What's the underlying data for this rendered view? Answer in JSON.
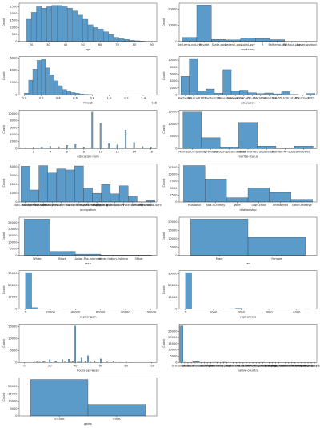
{
  "chart_data": [
    {
      "type": "histogram",
      "xlabel": "age",
      "ylabel": "Count",
      "color": "#5b9bc9",
      "bins": [
        17,
        20,
        23,
        26,
        29,
        32,
        35,
        38,
        41,
        44,
        47,
        50,
        53,
        56,
        59,
        62,
        65,
        68,
        71,
        74,
        77,
        80,
        83,
        86,
        89
      ],
      "values": [
        1600,
        2100,
        2500,
        2400,
        2500,
        2600,
        2600,
        2500,
        2400,
        2200,
        1900,
        1600,
        1200,
        1000,
        900,
        700,
        500,
        300,
        200,
        150,
        80,
        50,
        20,
        10
      ],
      "xlim": [
        13,
        93
      ],
      "xticks": [
        20,
        30,
        40,
        50,
        60,
        70,
        80,
        90
      ],
      "ylim": [
        0,
        2750
      ],
      "yticks": [
        0,
        500,
        1000,
        1500,
        2000,
        2500
      ]
    },
    {
      "type": "bar",
      "xlabel": "workclass",
      "ylabel": "Count",
      "color": "#5b9bc9",
      "categories": [
        "Self-emp-not-inc",
        "Private",
        "State-gov",
        "Federal-gov",
        "Local-gov",
        "?",
        "Self-emp-inc",
        "Without-pay",
        "Never-worked"
      ],
      "values": [
        2541,
        22696,
        1298,
        960,
        2093,
        1836,
        1116,
        14,
        7
      ],
      "ylim": [
        0,
        23830
      ],
      "yticks": [
        0,
        10000,
        20000
      ]
    },
    {
      "type": "histogram",
      "xlabel": "fnlwgt",
      "ylabel": "Count",
      "x_offset": "1e6",
      "color": "#5b9bc9",
      "bins": [
        0,
        50000,
        100000,
        150000,
        200000,
        250000,
        300000,
        350000,
        400000,
        450000,
        500000,
        550000,
        600000,
        650000,
        700000,
        750000,
        800000,
        850000,
        900000,
        950000,
        1000000,
        1050000,
        1100000,
        1150000,
        1200000,
        1250000,
        1300000,
        1350000,
        1400000,
        1450000,
        1500000
      ],
      "values": [
        300,
        2400,
        4200,
        5600,
        5800,
        4400,
        3300,
        2300,
        1500,
        900,
        600,
        400,
        300,
        180,
        120,
        80,
        50,
        40,
        25,
        15,
        10,
        8,
        5,
        3,
        2,
        2,
        1,
        1,
        0,
        1
      ],
      "xlim": [
        -60000,
        1560000
      ],
      "xticks": [
        {
          "value": 0,
          "label": "0.0"
        },
        {
          "value": 200000,
          "label": "0.2"
        },
        {
          "value": 400000,
          "label": "0.4"
        },
        {
          "value": 600000,
          "label": "0.6"
        },
        {
          "value": 800000,
          "label": "0.8"
        },
        {
          "value": 1000000,
          "label": "1.0"
        },
        {
          "value": 1200000,
          "label": "1.2"
        },
        {
          "value": 1400000,
          "label": "1.4"
        }
      ],
      "ylim": [
        0,
        6200
      ],
      "yticks": [
        0,
        2000,
        4000,
        6000
      ]
    },
    {
      "type": "bar",
      "xlabel": "education",
      "ylabel": "Count",
      "color": "#5b9bc9",
      "categories": [
        "Bachelors",
        "HS-grad",
        "11th",
        "Masters",
        "9th",
        "Some-college",
        "Assoc-acdm",
        "Assoc-voc",
        "7th-8th",
        "Doctorate",
        "Prof-school",
        "5th-6th",
        "10th",
        "1st-4th",
        "Preschool",
        "12th"
      ],
      "values": [
        5355,
        10501,
        1175,
        1723,
        514,
        7291,
        1067,
        1382,
        646,
        413,
        576,
        333,
        933,
        168,
        51,
        433
      ],
      "ylim": [
        0,
        11030
      ],
      "yticks": [
        0,
        2000,
        4000,
        6000,
        8000,
        10000
      ]
    },
    {
      "type": "spikes",
      "xlabel": "education-num",
      "ylabel": "Count",
      "color": "#5b9bc9",
      "x": [
        1,
        2,
        3,
        4,
        5,
        6,
        7,
        8,
        9,
        10,
        11,
        12,
        13,
        14,
        15,
        16
      ],
      "values": [
        51,
        168,
        333,
        646,
        514,
        933,
        1175,
        433,
        10501,
        7291,
        1382,
        1067,
        5355,
        1723,
        576,
        413
      ],
      "xlim": [
        0.3,
        16.7
      ],
      "xticks": [
        2,
        4,
        6,
        8,
        10,
        12,
        14,
        16
      ],
      "ylim": [
        0,
        11030
      ],
      "yticks": [
        0,
        2000,
        4000,
        6000,
        8000,
        10000
      ]
    },
    {
      "type": "bar",
      "xlabel": "marital-status",
      "ylabel": "Count",
      "color": "#5b9bc9",
      "categories": [
        "Married-civ-spouse",
        "Divorced",
        "Married-spouse-absent",
        "Never-married",
        "Separated",
        "Married-AF-spouse",
        "Widowed"
      ],
      "values": [
        14976,
        4443,
        418,
        10683,
        1025,
        23,
        993
      ],
      "ylim": [
        0,
        15730
      ],
      "yticks": [
        0,
        5000,
        10000,
        15000
      ]
    },
    {
      "type": "bar",
      "xlabel": "occupation",
      "ylabel": "Count",
      "color": "#5b9bc9",
      "categories": [
        "Exec-managerial",
        "Handlers-cleaners",
        "Prof-specialty",
        "Other-service",
        "Adm-clerical",
        "Sales",
        "Craft-repair",
        "Transport-moving",
        "Farming-fishing",
        "Machine-op-inspct",
        "Tech-support",
        "?",
        "Protective-serv",
        "Armed-Forces",
        "Priv-house-serv"
      ],
      "values": [
        4066,
        1370,
        4140,
        3295,
        3770,
        3650,
        4099,
        1597,
        994,
        2002,
        928,
        1843,
        649,
        9,
        149
      ],
      "ylim": [
        0,
        4350
      ],
      "yticks": [
        0,
        1000,
        2000,
        3000,
        4000
      ]
    },
    {
      "type": "bar",
      "xlabel": "relationship",
      "ylabel": "Count",
      "color": "#5b9bc9",
      "categories": [
        "Husband",
        "Not-in-family",
        "Wife",
        "Own-child",
        "Unmarried",
        "Other-relative"
      ],
      "values": [
        13193,
        8305,
        1568,
        5068,
        3446,
        981
      ],
      "ylim": [
        0,
        13850
      ],
      "yticks": [
        0,
        2500,
        5000,
        7500,
        10000,
        12500
      ]
    },
    {
      "type": "bar",
      "xlabel": "race",
      "ylabel": "Count",
      "color": "#5b9bc9",
      "categories": [
        "White",
        "Black",
        "Asian-Pac-Islander",
        "Amer-Indian-Eskimo",
        "Other"
      ],
      "values": [
        27816,
        3124,
        1039,
        311,
        271
      ],
      "ylim": [
        0,
        29200
      ],
      "yticks": [
        0,
        5000,
        10000,
        15000,
        20000,
        25000
      ]
    },
    {
      "type": "bar",
      "xlabel": "sex",
      "ylabel": "Count",
      "color": "#5b9bc9",
      "categories": [
        "Male",
        "Female"
      ],
      "values": [
        21790,
        10771
      ],
      "ylim": [
        0,
        22880
      ],
      "yticks": [
        0,
        5000,
        10000,
        15000,
        20000
      ]
    },
    {
      "type": "histogram",
      "xlabel": "capital-gain",
      "ylabel": "Count",
      "color": "#5b9bc9",
      "bins": [
        0,
        5000,
        10000,
        15000,
        20000,
        25000,
        30000,
        35000,
        40000,
        45000,
        50000,
        55000,
        60000,
        65000,
        70000,
        75000,
        80000,
        85000,
        90000,
        95000,
        100000
      ],
      "values": [
        30800,
        1200,
        300,
        80,
        0,
        0,
        20,
        0,
        0,
        0,
        0,
        0,
        0,
        0,
        0,
        0,
        0,
        0,
        0,
        160
      ],
      "xlim": [
        -5000,
        105000
      ],
      "xticks": [
        0,
        20000,
        40000,
        60000,
        80000,
        100000
      ],
      "ylim": [
        0,
        32340
      ],
      "yticks": [
        0,
        10000,
        20000,
        30000
      ]
    },
    {
      "type": "histogram",
      "xlabel": "capital-loss",
      "ylabel": "Count",
      "color": "#5b9bc9",
      "bins": [
        0,
        225,
        450,
        675,
        900,
        1125,
        1350,
        1575,
        1800,
        2025,
        2250,
        2475,
        2700,
        2925,
        3150,
        3375,
        3600,
        3825,
        4050,
        4275,
        4500
      ],
      "values": [
        31050,
        0,
        0,
        0,
        0,
        0,
        90,
        300,
        650,
        300,
        100,
        15,
        10,
        5,
        0,
        0,
        0,
        0,
        0,
        3
      ],
      "xlim": [
        -225,
        4725
      ],
      "xticks": [
        0,
        1000,
        2000,
        3000,
        4000
      ],
      "ylim": [
        0,
        32600
      ],
      "yticks": [
        0,
        10000,
        20000,
        30000
      ]
    },
    {
      "type": "spikes",
      "xlabel": "hours-per-week",
      "ylabel": "Count",
      "color": "#5b9bc9",
      "x": [
        8,
        10,
        12,
        15,
        16,
        20,
        24,
        25,
        30,
        32,
        35,
        36,
        37,
        38,
        40,
        42,
        43,
        44,
        45,
        48,
        50,
        52,
        55,
        56,
        60,
        65,
        70,
        72,
        75,
        80,
        84,
        99
      ],
      "values": [
        145,
        278,
        173,
        404,
        205,
        1224,
        252,
        674,
        1149,
        266,
        1297,
        220,
        149,
        476,
        15217,
        219,
        151,
        212,
        1824,
        517,
        2819,
        138,
        694,
        97,
        1475,
        244,
        291,
        71,
        66,
        133,
        45,
        85
      ],
      "xlim": [
        -4,
        104
      ],
      "xticks": [
        0,
        20,
        40,
        60,
        80,
        100
      ],
      "ylim": [
        0,
        16000
      ],
      "yticks": [
        0,
        5000,
        10000,
        15000
      ]
    },
    {
      "type": "bar",
      "xlabel": "native-country",
      "ylabel": "Count",
      "color": "#5b9bc9",
      "categories": [
        "United-States",
        "Cuba",
        "Jamaica",
        "India",
        "?",
        "Mexico",
        "South",
        "Puerto-Rico",
        "Honduras",
        "England",
        "Canada",
        "Germany",
        "Iran",
        "Philippines",
        "Italy",
        "Poland",
        "Columbia",
        "Cambodia",
        "Thailand",
        "Ecuador",
        "Laos",
        "Taiwan",
        "Haiti",
        "Portugal",
        "Dominican-Republic",
        "El-Salvador",
        "France",
        "Guatemala",
        "China",
        "Japan",
        "Yugoslavia",
        "Peru",
        "Outlying-US(Guam-USVI-etc)",
        "Scotland",
        "Trinadad&Tobago",
        "Greece",
        "Nicaragua",
        "Vietnam",
        "Hong",
        "Ireland",
        "Hungary",
        "Holand-Netherlands"
      ],
      "values": [
        29170,
        95,
        81,
        100,
        583,
        643,
        80,
        114,
        13,
        90,
        121,
        137,
        43,
        198,
        73,
        60,
        59,
        19,
        18,
        28,
        18,
        51,
        44,
        37,
        70,
        106,
        29,
        64,
        75,
        62,
        16,
        31,
        14,
        12,
        19,
        29,
        34,
        67,
        20,
        24,
        13,
        1
      ],
      "ylim": [
        0,
        30630
      ],
      "yticks": [
        0,
        5000,
        10000,
        15000,
        20000,
        25000
      ]
    },
    {
      "type": "bar",
      "xlabel": "gains",
      "ylabel": "Count",
      "color": "#5b9bc9",
      "categories": [
        "<=50K",
        ">50K"
      ],
      "values": [
        24720,
        7841
      ],
      "ylim": [
        0,
        25960
      ],
      "yticks": [
        0,
        5000,
        10000,
        15000,
        20000
      ]
    }
  ]
}
